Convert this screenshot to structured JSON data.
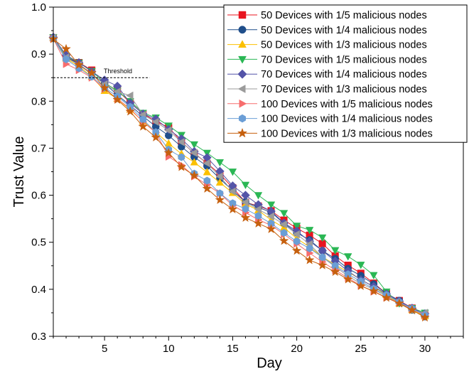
{
  "chart_data": {
    "type": "line",
    "xlabel": "Day",
    "ylabel": "Trust Value",
    "xlim": [
      1,
      33
    ],
    "ylim": [
      0.3,
      1.0
    ],
    "xticks": [
      5,
      10,
      15,
      20,
      25,
      30
    ],
    "yticks": [
      0.3,
      0.4,
      0.5,
      0.6,
      0.7,
      0.8,
      0.9,
      1.0
    ],
    "grid": false,
    "legend_position": "top-right",
    "threshold": {
      "label": "Threshold",
      "value": 0.85,
      "x_range": [
        1,
        8.5
      ]
    },
    "series": [
      {
        "name": "50 Devices with 1/5 malicious nodes",
        "color": "#e8141f",
        "marker": "square",
        "x": [
          1,
          2,
          3,
          4,
          5,
          6,
          7,
          8,
          9,
          10,
          11,
          12,
          13,
          14,
          15,
          16,
          17,
          18,
          19,
          20,
          21,
          22,
          23,
          24,
          25,
          26,
          27,
          28,
          29,
          30
        ],
        "y": [
          0.935,
          0.893,
          0.882,
          0.866,
          0.838,
          0.823,
          0.797,
          0.773,
          0.757,
          0.744,
          0.714,
          0.689,
          0.668,
          0.645,
          0.616,
          0.585,
          0.577,
          0.567,
          0.547,
          0.53,
          0.515,
          0.497,
          0.471,
          0.451,
          0.434,
          0.413,
          0.391,
          0.376,
          0.36,
          0.345
        ]
      },
      {
        "name": "50 Devices with 1/4 malicious nodes",
        "color": "#1f4e8a",
        "marker": "circle",
        "x": [
          1,
          2,
          3,
          4,
          5,
          6,
          7,
          8,
          9,
          10,
          11,
          12,
          13,
          14,
          15,
          16,
          17,
          18,
          19,
          20,
          21,
          22,
          23,
          24,
          25,
          26,
          27,
          28,
          29,
          30
        ],
        "y": [
          0.934,
          0.894,
          0.879,
          0.857,
          0.838,
          0.813,
          0.791,
          0.768,
          0.746,
          0.727,
          0.703,
          0.681,
          0.662,
          0.635,
          0.61,
          0.586,
          0.574,
          0.564,
          0.54,
          0.52,
          0.505,
          0.482,
          0.465,
          0.444,
          0.429,
          0.411,
          0.391,
          0.376,
          0.356,
          0.342
        ]
      },
      {
        "name": "50 Devices with 1/3 malicious nodes",
        "color": "#fbc000",
        "marker": "triangle-up",
        "x": [
          1,
          2,
          3,
          4,
          5,
          6,
          7,
          8,
          9,
          10,
          11,
          12,
          13,
          14,
          15,
          16,
          17,
          18,
          19,
          20,
          21,
          22,
          23,
          24,
          25,
          26,
          27,
          28,
          29,
          30
        ],
        "y": [
          0.935,
          0.891,
          0.874,
          0.852,
          0.822,
          0.805,
          0.782,
          0.757,
          0.734,
          0.71,
          0.688,
          0.67,
          0.649,
          0.627,
          0.605,
          0.581,
          0.568,
          0.547,
          0.531,
          0.508,
          0.49,
          0.469,
          0.452,
          0.437,
          0.421,
          0.405,
          0.388,
          0.37,
          0.356,
          0.343
        ]
      },
      {
        "name": "70 Devices with 1/5 malicious nodes",
        "color": "#2ab754",
        "marker": "triangle-down",
        "x": [
          1,
          2,
          3,
          4,
          5,
          6,
          7,
          8,
          9,
          10,
          11,
          12,
          13,
          14,
          15,
          16,
          17,
          18,
          19,
          20,
          21,
          22,
          23,
          24,
          25,
          26,
          27,
          28,
          29,
          30
        ],
        "y": [
          0.936,
          0.896,
          0.882,
          0.864,
          0.839,
          0.822,
          0.8,
          0.775,
          0.765,
          0.748,
          0.728,
          0.708,
          0.69,
          0.67,
          0.65,
          0.622,
          0.6,
          0.58,
          0.562,
          0.535,
          0.526,
          0.51,
          0.483,
          0.47,
          0.452,
          0.43,
          0.395,
          0.37,
          0.36,
          0.35
        ]
      },
      {
        "name": "70 Devices with 1/4 malicious nodes",
        "color": "#5454a8",
        "marker": "diamond",
        "x": [
          1,
          2,
          3,
          4,
          5,
          6,
          7,
          8,
          9,
          10,
          11,
          12,
          13,
          14,
          15,
          16,
          17,
          18,
          19,
          20,
          21,
          22,
          23,
          24,
          25,
          26,
          27,
          28,
          29,
          30
        ],
        "y": [
          0.936,
          0.898,
          0.882,
          0.863,
          0.845,
          0.832,
          0.796,
          0.773,
          0.762,
          0.74,
          0.72,
          0.693,
          0.68,
          0.651,
          0.62,
          0.6,
          0.58,
          0.566,
          0.541,
          0.524,
          0.502,
          0.482,
          0.46,
          0.439,
          0.42,
          0.406,
          0.39,
          0.375,
          0.36,
          0.348
        ]
      },
      {
        "name": "70 Devices with 1/3 malicious nodes",
        "color": "#9b9b9b",
        "marker": "triangle-left",
        "x": [
          1,
          2,
          3,
          4,
          5,
          6,
          7,
          8,
          9,
          10,
          11,
          12,
          13,
          14,
          15,
          16,
          17,
          18,
          19,
          20,
          21,
          22,
          23,
          24,
          25,
          26,
          27,
          28,
          29,
          30
        ],
        "y": [
          0.935,
          0.893,
          0.877,
          0.857,
          0.836,
          0.82,
          0.812,
          0.771,
          0.756,
          0.738,
          0.713,
          0.69,
          0.668,
          0.64,
          0.608,
          0.585,
          0.57,
          0.555,
          0.538,
          0.517,
          0.496,
          0.468,
          0.448,
          0.428,
          0.412,
          0.4,
          0.385,
          0.37,
          0.355,
          0.35
        ]
      },
      {
        "name": "100 Devices with 1/5 malicious nodes",
        "color": "#f76d6d",
        "marker": "triangle-right",
        "x": [
          1,
          2,
          3,
          4,
          5,
          6,
          7,
          8,
          9,
          10,
          11,
          12,
          13,
          14,
          15,
          16,
          17,
          18,
          19,
          20,
          21,
          22,
          23,
          24,
          25,
          26,
          27,
          28,
          29,
          30
        ],
        "y": [
          0.933,
          0.879,
          0.866,
          0.85,
          0.826,
          0.805,
          0.784,
          0.756,
          0.733,
          0.682,
          0.664,
          0.64,
          0.622,
          0.604,
          0.578,
          0.563,
          0.548,
          0.536,
          0.517,
          0.497,
          0.477,
          0.458,
          0.441,
          0.424,
          0.408,
          0.395,
          0.382,
          0.372,
          0.358,
          0.344
        ]
      },
      {
        "name": "100 Devices with 1/4 malicious nodes",
        "color": "#6b9ed6",
        "marker": "hexagon",
        "x": [
          1,
          2,
          3,
          4,
          5,
          6,
          7,
          8,
          9,
          10,
          11,
          12,
          13,
          14,
          15,
          16,
          17,
          18,
          19,
          20,
          21,
          22,
          23,
          24,
          25,
          26,
          27,
          28,
          29,
          30
        ],
        "y": [
          0.933,
          0.889,
          0.87,
          0.852,
          0.829,
          0.81,
          0.788,
          0.761,
          0.734,
          0.697,
          0.681,
          0.646,
          0.631,
          0.604,
          0.583,
          0.571,
          0.556,
          0.54,
          0.52,
          0.502,
          0.487,
          0.468,
          0.45,
          0.432,
          0.417,
          0.401,
          0.388,
          0.373,
          0.359,
          0.345
        ]
      },
      {
        "name": "100 Devices with 1/3 malicious nodes",
        "color": "#c6600e",
        "marker": "star",
        "x": [
          1,
          2,
          3,
          4,
          5,
          6,
          7,
          8,
          9,
          10,
          11,
          12,
          13,
          14,
          15,
          16,
          17,
          18,
          19,
          20,
          21,
          22,
          23,
          24,
          25,
          26,
          27,
          28,
          29,
          30
        ],
        "y": [
          0.932,
          0.911,
          0.877,
          0.86,
          0.828,
          0.803,
          0.778,
          0.746,
          0.723,
          0.69,
          0.66,
          0.642,
          0.614,
          0.59,
          0.57,
          0.552,
          0.54,
          0.528,
          0.503,
          0.482,
          0.462,
          0.451,
          0.437,
          0.421,
          0.407,
          0.396,
          0.382,
          0.37,
          0.356,
          0.34
        ]
      }
    ]
  }
}
